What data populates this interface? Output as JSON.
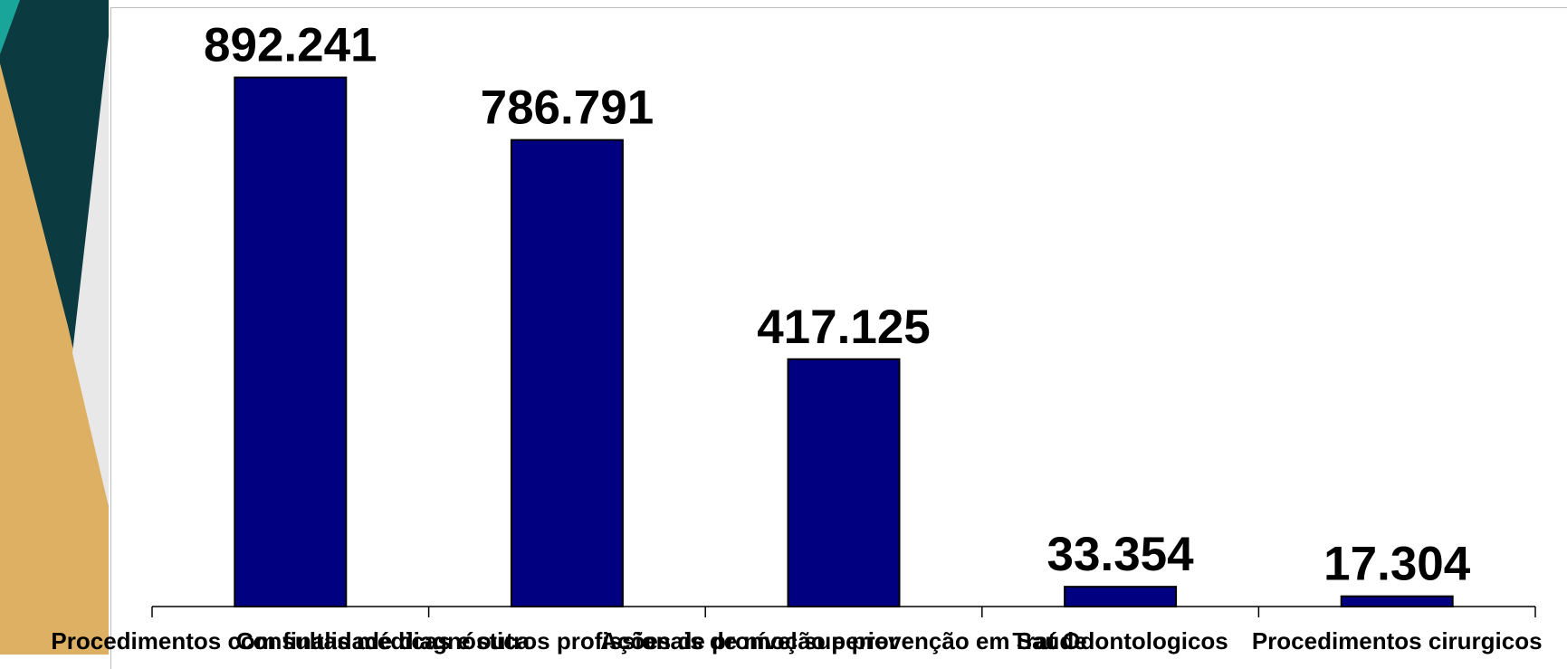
{
  "theme": {
    "bar_color": "#000080",
    "deco_teal": "#0b3a40",
    "deco_tan": "#deb063",
    "deco_green": "#1aa59a"
  },
  "chart_data": {
    "type": "bar",
    "title": "",
    "xlabel": "",
    "ylabel": "",
    "categories": [
      "Procedimentos com finalidade diagnóstica",
      "Consultas médicas e outros profissionais de nível superior",
      "Ações de promoção e prevenção em Saúde",
      "Trat Odontologicos",
      "Procedimentos cirurgicos"
    ],
    "values": [
      892241,
      786791,
      417125,
      33354,
      17304
    ],
    "value_labels": [
      "892.241",
      "786.791",
      "417.125",
      "33.354",
      "17.304"
    ],
    "ylim": [
      0,
      1000000
    ],
    "grid": false,
    "legend": "none"
  }
}
